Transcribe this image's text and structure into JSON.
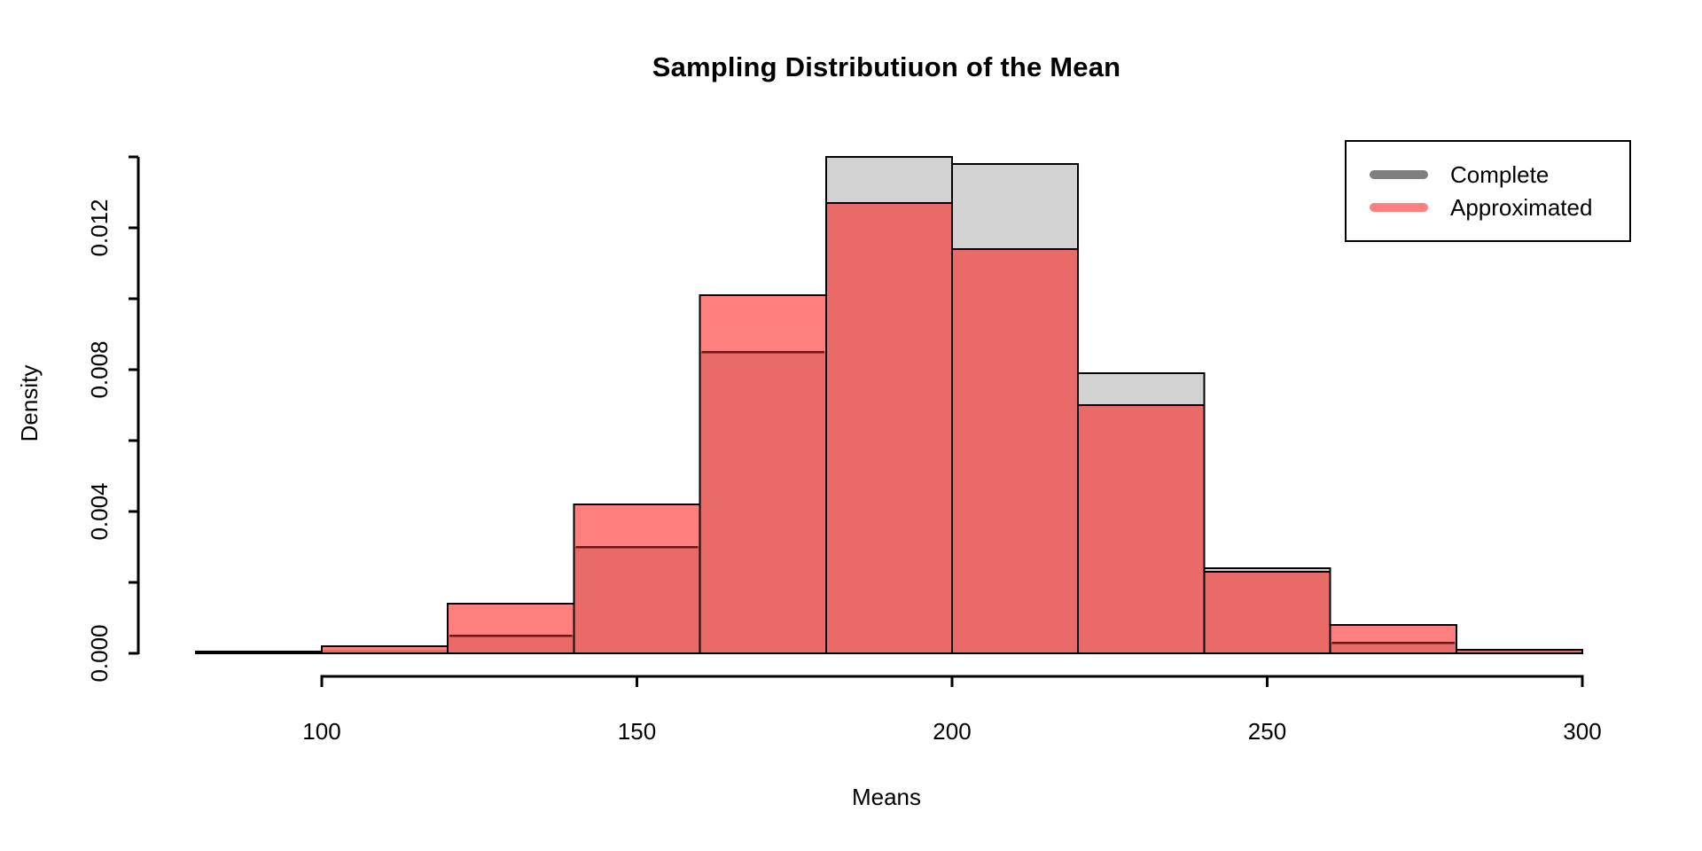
{
  "chart_data": {
    "type": "histogram",
    "title": "Sampling Distributiuon of the Mean",
    "xlabel": "Means",
    "ylabel": "Density",
    "xlim": [
      80,
      300
    ],
    "ylim": [
      0,
      0.014
    ],
    "grid": false,
    "legend_position": "topright",
    "bin_edges": [
      80,
      100,
      120,
      140,
      160,
      180,
      200,
      220,
      240,
      260,
      280,
      300
    ],
    "series": [
      {
        "name": "Complete",
        "fill": "#D2D2D2",
        "legend_color": "#7F7F7F",
        "densities": [
          5e-05,
          0.0001,
          0.0005,
          0.003,
          0.0085,
          0.014,
          0.0138,
          0.0079,
          0.0024,
          0.0003,
          0.0001
        ]
      },
      {
        "name": "Approximated",
        "fill": "#FF7F7E",
        "legend_color": "#FF7F7F",
        "densities": [
          0,
          0.0002,
          0.0014,
          0.0042,
          0.0101,
          0.0127,
          0.0114,
          0.007,
          0.0023,
          0.0008,
          0.0001
        ]
      }
    ],
    "overlap_fill": "#E96A66",
    "overlap_edge": "#701512",
    "bar_stroke": "#000000",
    "x_ticks": {
      "values": [
        100,
        150,
        200,
        250,
        300
      ],
      "labels": [
        "100",
        "150",
        "200",
        "250",
        "300"
      ]
    },
    "y_ticks": {
      "values": [
        0,
        0.002,
        0.004,
        0.006,
        0.008,
        0.01,
        0.012,
        0.014
      ],
      "labels": [
        "0.000",
        "",
        "0.004",
        "",
        "0.008",
        "",
        "0.012",
        ""
      ]
    }
  },
  "legend": {
    "items": [
      {
        "label": "Complete",
        "color": "#7F7F7F"
      },
      {
        "label": "Approximated",
        "color": "#FF7F7F"
      }
    ]
  }
}
